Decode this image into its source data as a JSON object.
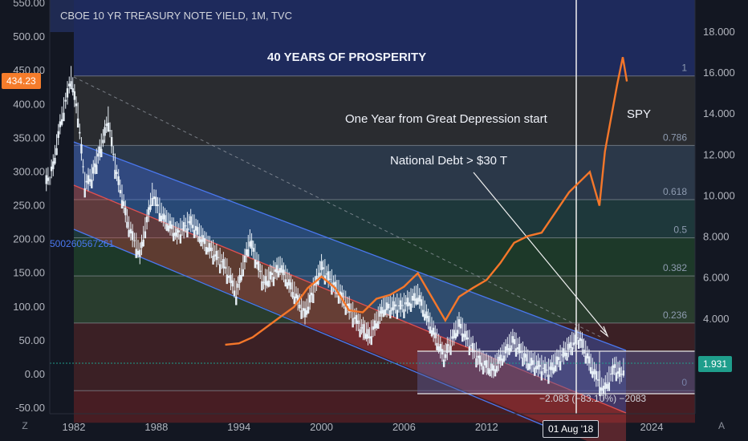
{
  "header": {
    "title": "CBOE 10 YR TREASURY NOTE YIELD, 1M, TVC"
  },
  "annotations": {
    "prosperity": "40 YEARS OF PROSPERITY",
    "depression": "One Year from Great Depression start",
    "debt": "National Debt > $30 T",
    "spy": "SPY",
    "channel_value": "500260567261",
    "measure": "−2.083 (−83.10%) −2083"
  },
  "price_labels": {
    "left_current": "434.23",
    "right_current": "1.931",
    "crosshair_date": "01 Aug '18"
  },
  "colors": {
    "background": "#131722",
    "left_current_bg": "#f57c2b",
    "right_current_bg": "#1f9e8c",
    "spy_line": "#f5772a",
    "channel_upper": "#3c6be6",
    "channel_mid": "#d94343",
    "up_candle": "#e8f0f7",
    "down_candle": "#e8f0f7"
  },
  "chart_data": {
    "type": "line",
    "title": "CBOE 10 YR TREASURY NOTE YIELD, 1M, TVC",
    "x_ticks": [
      "1982",
      "1988",
      "1994",
      "2000",
      "2006",
      "2012",
      "2018",
      "2024"
    ],
    "left_axis": {
      "ticks": [
        "550.00",
        "500.00",
        "450.00",
        "400.00",
        "350.00",
        "300.00",
        "250.00",
        "200.00",
        "150.00",
        "100.00",
        "50.00",
        "0.00",
        "-50.00"
      ],
      "range": [
        -50,
        550
      ],
      "series": "SPY"
    },
    "right_axis": {
      "ticks": [
        "18.000",
        "16.000",
        "14.000",
        "12.000",
        "10.000",
        "8.000",
        "6.000",
        "4.000",
        "2.000"
      ],
      "range": [
        0,
        19
      ],
      "series": "10Y yield"
    },
    "fib_levels": [
      {
        "label": "1",
        "value": 15.86,
        "fill": "#2b2d31"
      },
      {
        "label": "0.786",
        "value": 12.47,
        "fill": "#2c3a4c"
      },
      {
        "label": "0.618",
        "value": 9.82,
        "fill": "#1f3a3d"
      },
      {
        "label": "0.5",
        "value": 7.96,
        "fill": "#1e3b2a"
      },
      {
        "label": "0.382",
        "value": 6.1,
        "fill": "#2a3f2f"
      },
      {
        "label": "0.236",
        "value": 3.8,
        "fill": "#3d2126"
      },
      {
        "label": "0",
        "value": 0.5,
        "fill": "#4a1e24"
      }
    ],
    "spy_series": [
      {
        "x": 1993.0,
        "y": 44
      },
      {
        "x": 1994.0,
        "y": 46
      },
      {
        "x": 1995.0,
        "y": 55
      },
      {
        "x": 1996.0,
        "y": 70
      },
      {
        "x": 1997.0,
        "y": 85
      },
      {
        "x": 1998.0,
        "y": 100
      },
      {
        "x": 1999.0,
        "y": 128
      },
      {
        "x": 2000.0,
        "y": 145
      },
      {
        "x": 2001.0,
        "y": 128
      },
      {
        "x": 2002.0,
        "y": 95
      },
      {
        "x": 2003.0,
        "y": 92
      },
      {
        "x": 2004.0,
        "y": 112
      },
      {
        "x": 2005.0,
        "y": 118
      },
      {
        "x": 2006.0,
        "y": 130
      },
      {
        "x": 2007.0,
        "y": 150
      },
      {
        "x": 2008.0,
        "y": 115
      },
      {
        "x": 2009.0,
        "y": 80
      },
      {
        "x": 2010.0,
        "y": 115
      },
      {
        "x": 2011.0,
        "y": 128
      },
      {
        "x": 2012.0,
        "y": 140
      },
      {
        "x": 2013.0,
        "y": 165
      },
      {
        "x": 2014.0,
        "y": 195
      },
      {
        "x": 2015.0,
        "y": 205
      },
      {
        "x": 2016.0,
        "y": 210
      },
      {
        "x": 2017.0,
        "y": 240
      },
      {
        "x": 2018.0,
        "y": 270
      },
      {
        "x": 2019.0,
        "y": 290
      },
      {
        "x": 2019.5,
        "y": 300
      },
      {
        "x": 2020.2,
        "y": 250
      },
      {
        "x": 2020.6,
        "y": 330
      },
      {
        "x": 2021.0,
        "y": 375
      },
      {
        "x": 2021.5,
        "y": 430
      },
      {
        "x": 2021.9,
        "y": 470
      },
      {
        "x": 2022.2,
        "y": 434
      }
    ],
    "yield_series": [
      {
        "x": 1980.0,
        "y": 10.8
      },
      {
        "x": 1980.5,
        "y": 11.5
      },
      {
        "x": 1981.0,
        "y": 13.5
      },
      {
        "x": 1981.8,
        "y": 15.8
      },
      {
        "x": 1982.3,
        "y": 14.0
      },
      {
        "x": 1982.8,
        "y": 10.6
      },
      {
        "x": 1983.3,
        "y": 11.0
      },
      {
        "x": 1984.0,
        "y": 12.5
      },
      {
        "x": 1984.5,
        "y": 13.8
      },
      {
        "x": 1985.0,
        "y": 11.5
      },
      {
        "x": 1986.0,
        "y": 8.5
      },
      {
        "x": 1986.8,
        "y": 7.2
      },
      {
        "x": 1987.7,
        "y": 10.1
      },
      {
        "x": 1988.5,
        "y": 9.0
      },
      {
        "x": 1989.5,
        "y": 8.2
      },
      {
        "x": 1990.5,
        "y": 8.8
      },
      {
        "x": 1991.5,
        "y": 7.8
      },
      {
        "x": 1993.0,
        "y": 6.6
      },
      {
        "x": 1993.8,
        "y": 5.3
      },
      {
        "x": 1994.8,
        "y": 7.9
      },
      {
        "x": 1995.8,
        "y": 5.8
      },
      {
        "x": 1997.0,
        "y": 6.6
      },
      {
        "x": 1998.8,
        "y": 4.3
      },
      {
        "x": 2000.0,
        "y": 6.6
      },
      {
        "x": 2001.5,
        "y": 5.1
      },
      {
        "x": 2002.8,
        "y": 3.7
      },
      {
        "x": 2003.5,
        "y": 3.2
      },
      {
        "x": 2004.5,
        "y": 4.6
      },
      {
        "x": 2006.0,
        "y": 4.7
      },
      {
        "x": 2007.0,
        "y": 5.2
      },
      {
        "x": 2008.9,
        "y": 2.2
      },
      {
        "x": 2010.0,
        "y": 3.8
      },
      {
        "x": 2011.5,
        "y": 2.0
      },
      {
        "x": 2012.5,
        "y": 1.6
      },
      {
        "x": 2013.9,
        "y": 3.0
      },
      {
        "x": 2015.0,
        "y": 2.0
      },
      {
        "x": 2016.5,
        "y": 1.5
      },
      {
        "x": 2018.7,
        "y": 3.2
      },
      {
        "x": 2019.7,
        "y": 1.6
      },
      {
        "x": 2020.5,
        "y": 0.55
      },
      {
        "x": 2021.3,
        "y": 1.7
      },
      {
        "x": 2021.8,
        "y": 1.3
      },
      {
        "x": 2022.1,
        "y": 1.93
      }
    ]
  }
}
